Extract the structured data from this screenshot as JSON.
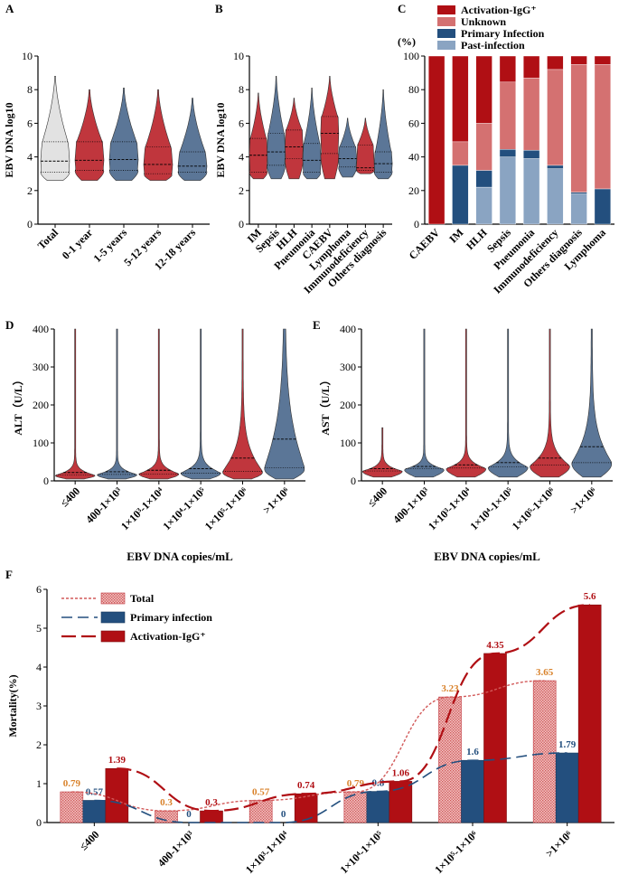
{
  "figure": {
    "panel_labels": [
      "A",
      "B",
      "C",
      "D",
      "E",
      "F"
    ],
    "colors": {
      "red": "#c0363d",
      "blue": "#5b7697",
      "grey": "#e2e2e2",
      "dark_red": "#b00f14",
      "light_red": "#d47171",
      "navy": "#234f7e",
      "light_blue": "#8aa4c2",
      "orange_label": "#d9822b"
    }
  },
  "chart_data": [
    {
      "panel": "A",
      "type": "violin",
      "ylabel": "EBV DNA log10",
      "ylim": [
        0,
        10
      ],
      "yticks": [
        "0",
        "2",
        "4",
        "6",
        "8",
        "10"
      ],
      "categories": [
        "Total",
        "0-1 year",
        "1-5 years",
        "5-12 years",
        "12-18 years"
      ],
      "colors": [
        "#e2e2e2",
        "#c0363d",
        "#5b7697",
        "#c0363d",
        "#5b7697"
      ],
      "min": [
        2.6,
        2.6,
        2.6,
        2.6,
        2.6
      ],
      "max": [
        8.8,
        8.0,
        8.1,
        8.0,
        7.5
      ],
      "q1": [
        3.1,
        3.2,
        3.2,
        3.0,
        3.1
      ],
      "median": [
        3.75,
        3.8,
        3.85,
        3.55,
        3.45
      ],
      "q3": [
        4.9,
        4.9,
        4.9,
        4.6,
        4.3
      ]
    },
    {
      "panel": "B",
      "type": "violin",
      "ylabel": "EBV DNA log10",
      "ylim": [
        0,
        10
      ],
      "yticks": [
        "0",
        "2",
        "4",
        "6",
        "8",
        "10"
      ],
      "categories": [
        "IM",
        "Sepsis",
        "HLH",
        "Pneumonia",
        "CAEBV",
        "Lymphoma",
        "Immunodeficiency",
        "Others diagnosis"
      ],
      "colors": [
        "#c0363d",
        "#5b7697",
        "#c0363d",
        "#5b7697",
        "#c0363d",
        "#5b7697",
        "#c0363d",
        "#5b7697"
      ],
      "min": [
        2.7,
        2.7,
        2.7,
        2.7,
        2.7,
        2.8,
        3.0,
        2.7
      ],
      "max": [
        7.8,
        8.8,
        7.5,
        8.1,
        8.8,
        6.3,
        6.3,
        8.0
      ],
      "q1": [
        3.1,
        3.5,
        3.9,
        3.1,
        4.2,
        3.4,
        3.2,
        3.1
      ],
      "median": [
        4.1,
        4.3,
        4.6,
        3.8,
        5.4,
        3.9,
        3.35,
        3.6
      ],
      "q3": [
        5.1,
        5.4,
        5.6,
        4.8,
        6.4,
        4.6,
        4.7,
        4.3
      ]
    },
    {
      "panel": "C",
      "type": "bar",
      "stacked": true,
      "ylabel": "(%)",
      "ylim": [
        0,
        100
      ],
      "yticks": [
        "0",
        "20",
        "40",
        "60",
        "80",
        "100"
      ],
      "categories": [
        "CAEBV",
        "IM",
        "HLH",
        "Sepsis",
        "Pneumonia",
        "Immunodeficiency",
        "Others diagnosis",
        "Lymphoma"
      ],
      "legend": [
        "Activation-IgG⁺",
        "Unknown",
        "Primary Infection",
        "Past-infection"
      ],
      "series": [
        {
          "name": "Past-infection",
          "color": "#8aa4c2",
          "values": [
            0,
            0,
            22,
            40,
            39,
            33,
            18,
            0
          ]
        },
        {
          "name": "Primary Infection",
          "color": "#234f7e",
          "values": [
            0,
            35,
            10,
            4.5,
            5,
            2,
            1,
            21
          ]
        },
        {
          "name": "Unknown",
          "color": "#d47171",
          "values": [
            0,
            14,
            28,
            40,
            43,
            57,
            76,
            74
          ]
        },
        {
          "name": "Activation-IgG⁺",
          "color": "#b00f14",
          "values": [
            100,
            51,
            40,
            15.5,
            13,
            8,
            5,
            5
          ]
        }
      ]
    },
    {
      "panel": "D",
      "type": "violin",
      "ylabel": "ALT（U/L）",
      "xlabel": "EBV DNA copies/mL",
      "ylim": [
        0,
        400
      ],
      "yticks": [
        "0",
        "100",
        "200",
        "300",
        "400"
      ],
      "categories": [
        "≤400",
        "400-1×10³",
        "1×10³-1×10⁴",
        "1×10⁴-1×10⁵",
        "1×10⁵-1×10⁶",
        ">1×10⁶"
      ],
      "colors": [
        "#c0363d",
        "#5b7697",
        "#c0363d",
        "#5b7697",
        "#c0363d",
        "#5b7697"
      ],
      "min": [
        5,
        5,
        5,
        5,
        5,
        5
      ],
      "max": [
        400,
        400,
        400,
        400,
        400,
        400
      ],
      "mode": [
        14,
        16,
        18,
        20,
        22,
        30
      ],
      "median": [
        15,
        17,
        18,
        20,
        25,
        35
      ],
      "q3": [
        22,
        24,
        28,
        32,
        60,
        110
      ]
    },
    {
      "panel": "E",
      "type": "violin",
      "ylabel": "AST（U/L）",
      "xlabel": "EBV DNA copies/mL",
      "ylim": [
        0,
        400
      ],
      "yticks": [
        "0",
        "100",
        "200",
        "300",
        "400"
      ],
      "categories": [
        "≤400",
        "400-1×10³",
        "1×10³-1×10⁴",
        "1×10⁴-1×10⁵",
        "1×10⁵-1×10⁶",
        ">1×10⁶"
      ],
      "colors": [
        "#c0363d",
        "#5b7697",
        "#c0363d",
        "#5b7697",
        "#c0363d",
        "#5b7697"
      ],
      "min": [
        10,
        10,
        10,
        10,
        10,
        10
      ],
      "max": [
        140,
        400,
        400,
        400,
        400,
        400
      ],
      "mode": [
        25,
        30,
        32,
        35,
        38,
        45
      ],
      "median": [
        26,
        32,
        34,
        37,
        42,
        48
      ],
      "q3": [
        32,
        38,
        42,
        48,
        60,
        90
      ]
    },
    {
      "panel": "F",
      "type": "bar",
      "ylabel": "Mortality(%)",
      "ylim": [
        0,
        6
      ],
      "yticks": [
        "0",
        "1",
        "2",
        "3",
        "4",
        "5",
        "6"
      ],
      "categories": [
        "≤400",
        "400-1×10³",
        "1×10³-1×10⁴",
        "1×10⁴-1×10⁵",
        "1×10⁵-1×10⁶",
        ">1×10⁶"
      ],
      "legend": [
        "Total",
        "Primary infection",
        "Activation-IgG⁺"
      ],
      "series": [
        {
          "name": "Total",
          "color": "#e8a3a3",
          "label_color": "#d9822b",
          "values": [
            0.79,
            0.3,
            0.57,
            0.79,
            3.23,
            3.65
          ],
          "labels": [
            "0.79",
            "0.3",
            "0.57",
            "0.79",
            "3.23",
            "3.65"
          ]
        },
        {
          "name": "Primary infection",
          "color": "#234f7e",
          "label_color": "#234f7e",
          "values": [
            0.57,
            0,
            0,
            0.8,
            1.6,
            1.79
          ],
          "labels": [
            "0.57",
            "0",
            "0",
            "0.8",
            "1.6",
            "1.79"
          ]
        },
        {
          "name": "Activation-IgG⁺",
          "color": "#b00f14",
          "label_color": "#b00f14",
          "values": [
            1.39,
            0.3,
            0.74,
            1.06,
            4.35,
            5.6
          ],
          "labels": [
            "1.39",
            "0.3",
            "0.74",
            "1.06",
            "4.35",
            "5.6"
          ]
        }
      ]
    }
  ]
}
